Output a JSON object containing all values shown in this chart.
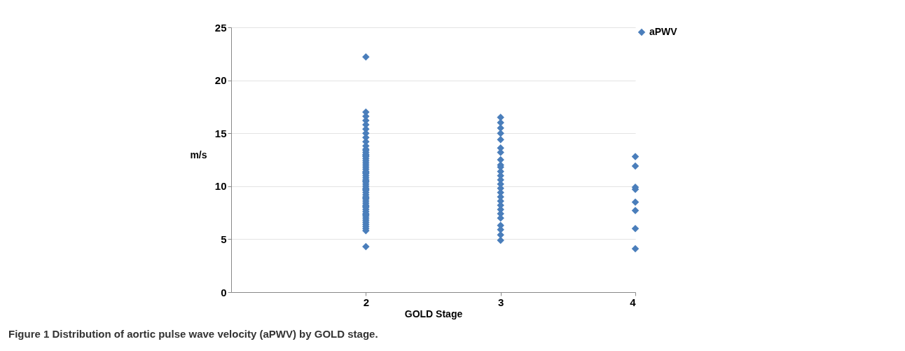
{
  "chart_data": {
    "type": "scatter",
    "xlabel": "GOLD Stage",
    "ylabel": "m/s",
    "annotations": [
      "Figure 1 Distribution of aortic pulse wave velocity (aPWV) by GOLD stage."
    ],
    "xlim": [
      1,
      4
    ],
    "xticks": [
      2,
      3,
      4
    ],
    "ylim": [
      0,
      25
    ],
    "yticks": [
      0,
      5,
      10,
      15,
      20,
      25
    ],
    "grid": "y",
    "legend": "right",
    "marker": "diamond",
    "series": [
      {
        "name": "aPWV",
        "color": "#4a7ebb",
        "x": [
          2,
          2,
          2,
          2,
          2,
          2,
          2,
          2,
          2,
          2,
          2,
          2,
          2,
          2,
          2,
          2,
          2,
          2,
          2,
          2,
          2,
          2,
          2,
          2,
          2,
          2,
          2,
          2,
          2,
          2,
          2,
          2,
          2,
          2,
          2,
          2,
          2,
          2,
          2,
          2,
          2,
          2,
          2,
          2,
          2,
          2,
          2,
          2,
          2,
          2,
          2,
          2,
          2,
          2,
          2,
          2,
          2,
          2,
          3,
          3,
          3,
          3,
          3,
          3,
          3,
          3,
          3,
          3,
          3,
          3,
          3,
          3,
          3,
          3,
          3,
          3,
          3,
          3,
          3,
          3,
          3,
          3,
          3,
          3,
          4,
          4,
          4,
          4,
          4,
          4,
          4,
          4
        ],
        "values": [
          22.2,
          17.0,
          16.6,
          16.2,
          15.8,
          15.4,
          15.0,
          14.6,
          14.2,
          13.8,
          13.5,
          13.2,
          13.0,
          12.8,
          12.6,
          12.4,
          12.2,
          12.0,
          11.8,
          11.6,
          11.4,
          11.2,
          11.0,
          10.8,
          10.6,
          10.4,
          10.2,
          10.0,
          9.8,
          9.6,
          9.4,
          9.2,
          9.0,
          8.8,
          8.6,
          8.4,
          8.2,
          8.0,
          7.8,
          7.6,
          7.4,
          7.2,
          7.0,
          6.8,
          6.6,
          6.4,
          6.2,
          6.0,
          5.8,
          4.3,
          13.4,
          12.9,
          11.3,
          10.5,
          9.7,
          8.9,
          8.1,
          7.3,
          16.5,
          16.0,
          15.5,
          15.0,
          14.4,
          13.6,
          13.2,
          12.5,
          12.0,
          11.8,
          11.4,
          11.0,
          10.6,
          10.2,
          9.8,
          9.4,
          9.0,
          8.6,
          8.2,
          7.8,
          7.4,
          7.0,
          6.3,
          5.9,
          5.4,
          4.9,
          12.8,
          11.9,
          9.9,
          9.7,
          8.5,
          7.7,
          6.0,
          4.1
        ]
      }
    ]
  }
}
